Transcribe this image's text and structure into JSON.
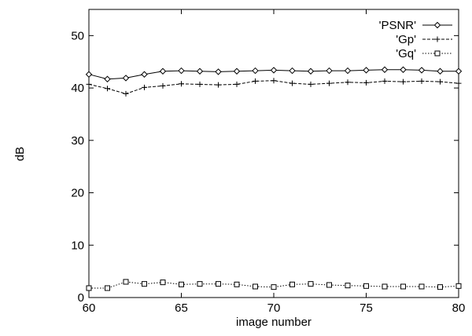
{
  "chart_data": {
    "type": "line",
    "xlabel": "image number",
    "ylabel": "dB",
    "xlim": [
      60,
      80
    ],
    "ylim": [
      0,
      55
    ],
    "x_ticks": [
      60,
      65,
      70,
      75,
      80
    ],
    "y_ticks": [
      0,
      10,
      20,
      30,
      40,
      50
    ],
    "grid": false,
    "legend_position": "top-right",
    "x": [
      60,
      61,
      62,
      63,
      64,
      65,
      66,
      67,
      68,
      69,
      70,
      71,
      72,
      73,
      74,
      75,
      76,
      77,
      78,
      79,
      80
    ],
    "series": [
      {
        "name": "'PSNR'",
        "marker": "diamond",
        "line_style": "solid",
        "color": "#000000",
        "values": [
          42.6,
          41.7,
          41.9,
          42.6,
          43.2,
          43.3,
          43.2,
          43.1,
          43.2,
          43.3,
          43.4,
          43.3,
          43.2,
          43.3,
          43.3,
          43.4,
          43.5,
          43.5,
          43.4,
          43.2,
          43.2
        ]
      },
      {
        "name": "'Gp'",
        "marker": "plus",
        "line_style": "dashed",
        "color": "#000000",
        "values": [
          40.7,
          39.9,
          38.9,
          40.1,
          40.4,
          40.8,
          40.7,
          40.6,
          40.7,
          41.3,
          41.4,
          40.9,
          40.7,
          40.9,
          41.1,
          41.0,
          41.3,
          41.2,
          41.3,
          41.2,
          40.9
        ]
      },
      {
        "name": "'Gq'",
        "marker": "square",
        "line_style": "dotted",
        "color": "#000000",
        "values": [
          1.8,
          1.8,
          3.0,
          2.6,
          2.9,
          2.5,
          2.6,
          2.6,
          2.5,
          2.1,
          2.0,
          2.5,
          2.6,
          2.4,
          2.3,
          2.2,
          2.1,
          2.1,
          2.1,
          2.0,
          2.2
        ]
      }
    ]
  }
}
